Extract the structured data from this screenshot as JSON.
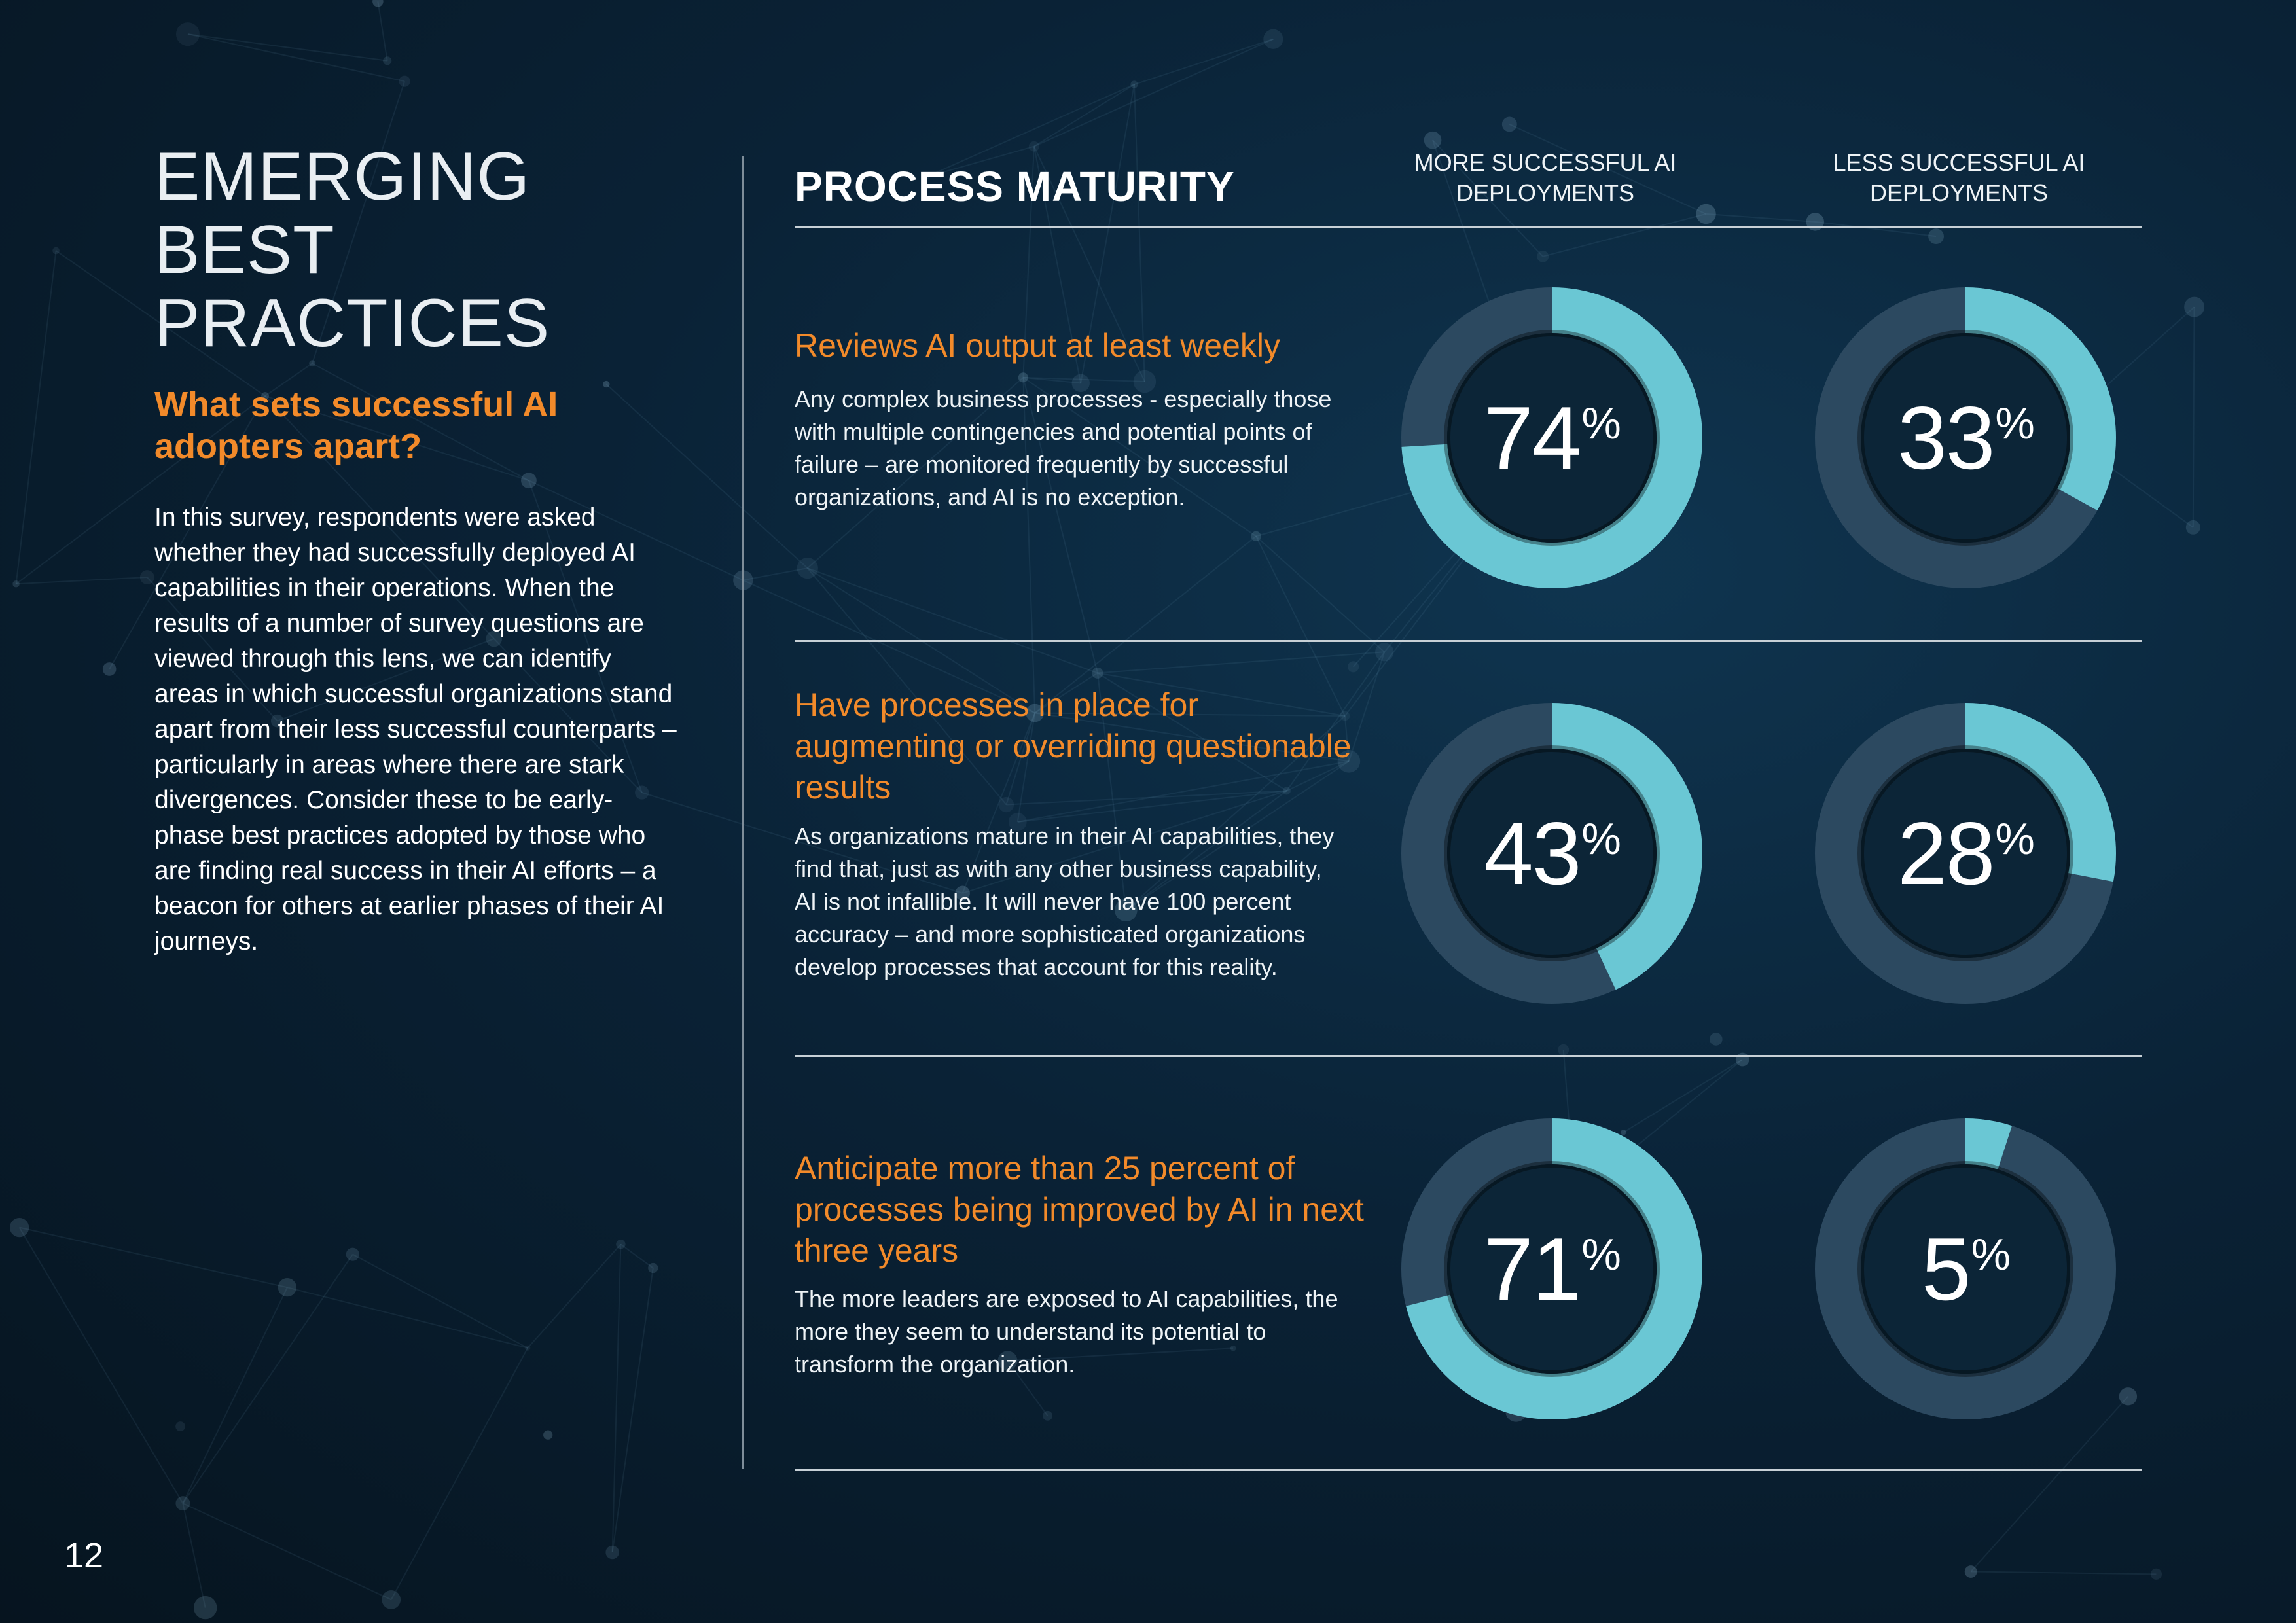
{
  "page": {
    "heading_line1": "EMERGING BEST",
    "heading_line2": "PRACTICES",
    "subheading": "What sets successful AI adopters apart?",
    "intro": "In this survey, respondents were asked whether they had successfully deployed AI capabilities in their operations. When the results of a number of survey questions are viewed through this lens, we can identify areas in which successful organizations stand apart from their less successful counterparts – particularly in areas where there are stark divergences. Consider these to be early-phase best practices adopted by those who are finding real success in their AI efforts – a beacon for others at earlier phases of their AI journeys.",
    "page_number": "12"
  },
  "section": {
    "title": "PROCESS MATURITY",
    "col_more": "MORE SUCCESSFUL AI DEPLOYMENTS",
    "col_less": "LESS SUCCESSFUL AI DEPLOYMENTS"
  },
  "colors": {
    "accent_orange": "#f28a2a",
    "donut_fill": "#6ac7d4",
    "donut_track": "#2c4960"
  },
  "rows": [
    {
      "title": "Reviews AI output at least weekly",
      "description": "Any complex business processes - especially those with multiple contingencies and potential points of failure – are monitored frequently by successful organizations, and AI is no exception.",
      "more_pct": 74,
      "more_label": "74",
      "less_pct": 33,
      "less_label": "33",
      "pct_sign": "%"
    },
    {
      "title": "Have processes in place for augmenting or overriding questionable results",
      "description": "As organizations mature in their AI capabilities, they find that, just as with any other business capability, AI is not infallible. It will never have 100 percent accuracy – and more sophisticated organizations develop processes that account for this reality.",
      "more_pct": 43,
      "more_label": "43",
      "less_pct": 28,
      "less_label": "28",
      "pct_sign": "%"
    },
    {
      "title": "Anticipate more than 25 percent of processes being improved by AI in next three years",
      "description": "The more leaders are exposed to AI capabilities, the more they seem to understand its potential to transform the organization.",
      "more_pct": 71,
      "more_label": "71",
      "less_pct": 5,
      "less_label": "5",
      "pct_sign": "%"
    }
  ]
}
